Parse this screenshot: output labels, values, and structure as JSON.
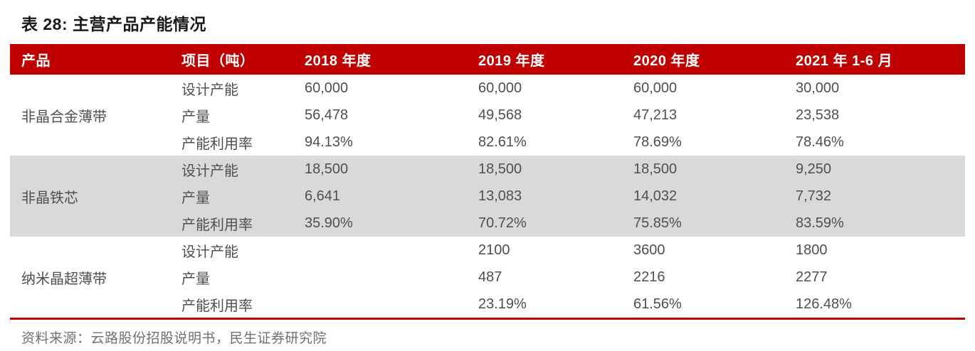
{
  "table": {
    "title": "表 28: 主营产品产能情况",
    "columns": [
      "产品",
      "项目（吨）",
      "2018 年度",
      "2019 年度",
      "2020 年度",
      "2021 年 1-6 月"
    ],
    "groups": [
      {
        "product": "非晶合金薄带",
        "rows": [
          {
            "label": "设计产能",
            "values": [
              "60,000",
              "60,000",
              "60,000",
              "30,000"
            ]
          },
          {
            "label": "产量",
            "values": [
              "56,478",
              "49,568",
              "47,213",
              "23,538"
            ]
          },
          {
            "label": "产能利用率",
            "values": [
              "94.13%",
              "82.61%",
              "78.69%",
              "78.46%"
            ]
          }
        ]
      },
      {
        "product": "非晶铁芯",
        "rows": [
          {
            "label": "设计产能",
            "values": [
              "18,500",
              "18,500",
              "18,500",
              "9,250"
            ]
          },
          {
            "label": "产量",
            "values": [
              "6,641",
              "13,083",
              "14,032",
              "7,732"
            ]
          },
          {
            "label": "产能利用率",
            "values": [
              "35.90%",
              "70.72%",
              "75.85%",
              "83.59%"
            ]
          }
        ]
      },
      {
        "product": "纳米晶超薄带",
        "rows": [
          {
            "label": "设计产能",
            "values": [
              "",
              "2100",
              "3600",
              "1800"
            ]
          },
          {
            "label": "产量",
            "values": [
              "",
              "487",
              "2216",
              "2277"
            ]
          },
          {
            "label": "产能利用率",
            "values": [
              "",
              "23.19%",
              "61.56%",
              "126.48%"
            ]
          }
        ]
      }
    ],
    "source": "资料来源：云路股份招股说明书，民生证券研究院"
  },
  "colors": {
    "header_red": "#c00000",
    "band_gray": "#d9d9d9"
  }
}
